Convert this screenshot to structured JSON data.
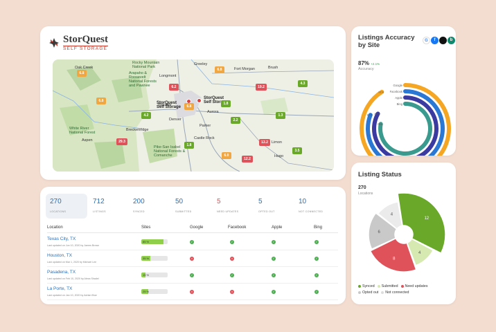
{
  "brand": {
    "name": "StorQuest",
    "tagline": "SELF STORAGE"
  },
  "map": {
    "places": [
      {
        "id": "oak-creek",
        "label": "Oak Creek"
      },
      {
        "id": "rocky-mountain",
        "label": "Rocky Mountain National Park"
      },
      {
        "id": "arapaho",
        "label": "Arapaho & Roosevelt National Forests and Pawnee"
      },
      {
        "id": "longmont",
        "label": "Longmont"
      },
      {
        "id": "fort-morgan",
        "label": "Fort Morgan"
      },
      {
        "id": "brush",
        "label": "Brush"
      },
      {
        "id": "greeley",
        "label": "Greeley"
      },
      {
        "id": "boulder",
        "label": "Boulder"
      },
      {
        "id": "denver",
        "label": "Denver"
      },
      {
        "id": "aurora",
        "label": "Aurora"
      },
      {
        "id": "parker",
        "label": "Parker"
      },
      {
        "id": "castle-rock",
        "label": "Castle Rock"
      },
      {
        "id": "breckenridge",
        "label": "Breckenridge"
      },
      {
        "id": "white-river",
        "label": "White River National Forest"
      },
      {
        "id": "aspen",
        "label": "Aspen"
      },
      {
        "id": "pike-san-isabel",
        "label": "Pike-San Isabel National Forests & Comanche"
      },
      {
        "id": "limon",
        "label": "Limon"
      },
      {
        "id": "hugo",
        "label": "Hugo"
      },
      {
        "id": "sq1",
        "label": "StorQuest Self Storage"
      },
      {
        "id": "sq2",
        "label": "StorQuest Self Storage"
      }
    ],
    "pins": [
      {
        "value": "6.8",
        "status": "orange"
      },
      {
        "value": "6.8",
        "status": "orange"
      },
      {
        "value": "6.2",
        "status": "red"
      },
      {
        "value": "6.8",
        "status": "orange"
      },
      {
        "value": "19.2",
        "status": "red"
      },
      {
        "value": "4.3",
        "status": "green"
      },
      {
        "value": "4.2",
        "status": "green"
      },
      {
        "value": "6.8",
        "status": "orange"
      },
      {
        "value": "1.8",
        "status": "green"
      },
      {
        "value": "2.2",
        "status": "green"
      },
      {
        "value": "1.3",
        "status": "green"
      },
      {
        "value": "29.3",
        "status": "red"
      },
      {
        "value": "1.8",
        "status": "green"
      },
      {
        "value": "13.2",
        "status": "red"
      },
      {
        "value": "3.5",
        "status": "green"
      },
      {
        "value": "6.0",
        "status": "orange"
      },
      {
        "value": "12.2",
        "status": "red"
      }
    ]
  },
  "accuracy": {
    "title": "Listings Accuracy by Site",
    "percent": "87%",
    "delta": "+2.1%",
    "subtitle": "Accuracy",
    "site_icons": [
      {
        "name": "google-icon",
        "glyph": "G",
        "color": "#ffffff",
        "text": "#4285f4"
      },
      {
        "name": "facebook-icon",
        "glyph": "f",
        "color": "#1877f2",
        "text": "#ffffff"
      },
      {
        "name": "apple-icon",
        "glyph": "",
        "color": "#111111",
        "text": "#ffffff"
      },
      {
        "name": "bing-icon",
        "glyph": "b",
        "color": "#0f8a6e",
        "text": "#ffffff"
      }
    ],
    "rings": [
      {
        "site": "Google",
        "value": 91,
        "color": "#f5a623",
        "label": "91%"
      },
      {
        "site": "Facebook",
        "value": 81,
        "color": "#2a77d4",
        "label": "81%"
      },
      {
        "site": "Apple",
        "value": 83,
        "color": "#3a3aa0",
        "label": "83%"
      },
      {
        "site": "Bing",
        "value": 78,
        "color": "#3a9a8e",
        "label": "78%"
      }
    ]
  },
  "stats": [
    {
      "value": "270",
      "label": "LOCATIONS",
      "style": "blue"
    },
    {
      "value": "712",
      "label": "LISTINGS",
      "style": "blue"
    },
    {
      "value": "200",
      "label": "SYNCED",
      "style": "blue"
    },
    {
      "value": "50",
      "label": "SUBMITTED",
      "style": "blue"
    },
    {
      "value": "5",
      "label": "NEED UPDATES",
      "style": "red"
    },
    {
      "value": "5",
      "label": "OPTED OUT",
      "style": "blue"
    },
    {
      "value": "10",
      "label": "NOT CONNECTED",
      "style": "blue"
    }
  ],
  "table": {
    "headers": [
      "Location",
      "Sites",
      "Google",
      "Facebook",
      "Apple",
      "Bing"
    ],
    "rows": [
      {
        "name": "Texas City, TX",
        "updated": "Last updated on Jun 10, 2020 by James Brown",
        "sites_pct": 85,
        "sites_label": "85 %",
        "google": true,
        "facebook": true,
        "apple": true,
        "bing": true
      },
      {
        "name": "Houston, TX",
        "updated": "Last updated on Mar 1, 2020 by Michael Lee",
        "sites_pct": 35,
        "sites_label": "35 %",
        "google": false,
        "facebook": false,
        "apple": true,
        "bing": true
      },
      {
        "name": "Pasadena, TX",
        "updated": "Last updated on Feb 10, 2020 by Alexa Shadel",
        "sites_pct": 15,
        "sites_label": "15 %",
        "google": true,
        "facebook": true,
        "apple": true,
        "bing": true
      },
      {
        "name": "La Porte, TX",
        "updated": "Last updated on Jan 10, 2020 by Adrian Blue",
        "sites_pct": 25,
        "sites_label": "25 %",
        "google": false,
        "facebook": false,
        "apple": true,
        "bing": true
      }
    ]
  },
  "listing_status": {
    "title": "Listing Status",
    "count": "270",
    "count_label": "Locations",
    "segments": [
      {
        "name": "Synced",
        "value": 12,
        "label": "12",
        "color": "#6aa82a"
      },
      {
        "name": "Submitted",
        "value": 4,
        "label": "4",
        "color": "#d6e9b0"
      },
      {
        "name": "Need updates",
        "value": 8,
        "label": "8",
        "color": "#e0525a"
      },
      {
        "name": "Opted out",
        "value": 6,
        "label": "6",
        "color": "#c9c9c9"
      },
      {
        "name": "Not connected",
        "value": 4,
        "label": "4",
        "color": "#ebebeb"
      }
    ]
  }
}
